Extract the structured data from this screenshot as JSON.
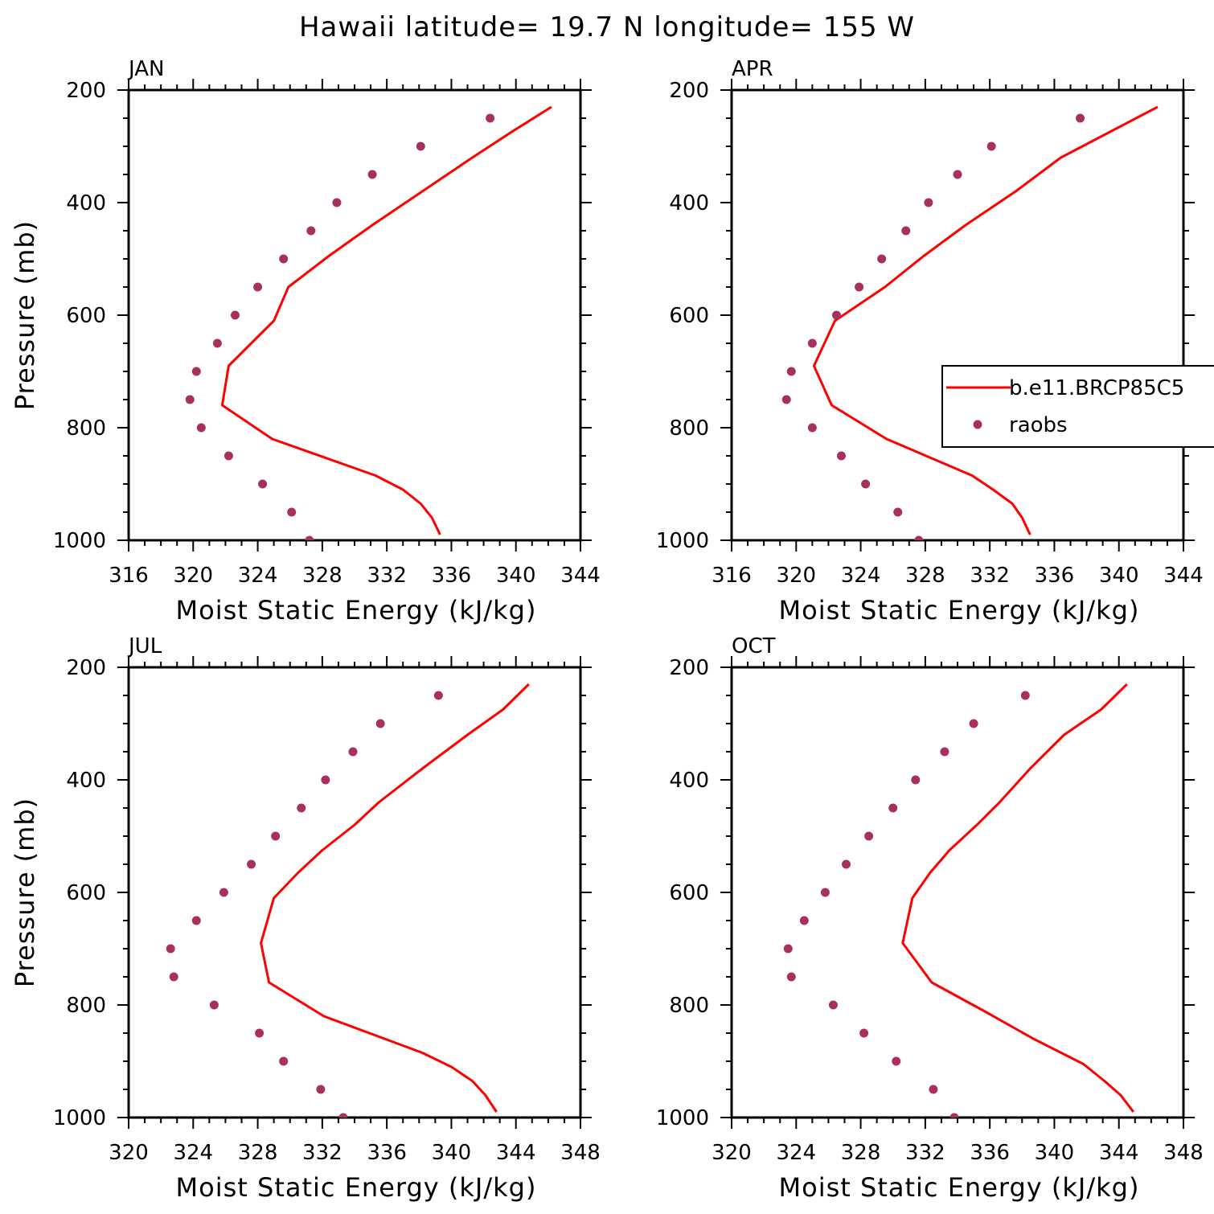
{
  "title": "Hawaii  latitude= 19.7 N longitude= 155 W",
  "colors": {
    "model": "#ff0000",
    "obs": "#a8305e"
  },
  "legend": {
    "placement": "right",
    "model_label": "b.e11.BRCP85C5",
    "obs_label": "raobs"
  },
  "chart_data": [
    {
      "type": "line",
      "panel": "JAN",
      "xlabel": "Moist Static Energy (kJ/kg)",
      "ylabel": "Pressure (mb)",
      "xlim": [
        316,
        344
      ],
      "ylim": [
        200,
        1000
      ],
      "xticks": [
        316,
        320,
        324,
        328,
        332,
        336,
        340,
        344
      ],
      "yticks": [
        200,
        400,
        600,
        800,
        1000
      ],
      "legend": false,
      "series": [
        {
          "name": "b.e11.BRCP85C5",
          "kind": "line",
          "points": [
            [
              342.2,
              230
            ],
            [
              339.7,
              275
            ],
            [
              337.3,
              320
            ],
            [
              334.2,
              380
            ],
            [
              331.1,
              440
            ],
            [
              328.4,
              495
            ],
            [
              325.9,
              550
            ],
            [
              325.0,
              610
            ],
            [
              322.2,
              690
            ],
            [
              321.8,
              760
            ],
            [
              324.9,
              820
            ],
            [
              331.3,
              885
            ],
            [
              333.0,
              910
            ],
            [
              334.1,
              935
            ],
            [
              334.8,
              960
            ],
            [
              335.3,
              990
            ]
          ]
        },
        {
          "name": "raobs",
          "kind": "scatter",
          "points": [
            [
              338.4,
              250
            ],
            [
              334.1,
              300
            ],
            [
              331.1,
              350
            ],
            [
              328.9,
              400
            ],
            [
              327.3,
              450
            ],
            [
              325.6,
              500
            ],
            [
              324.0,
              550
            ],
            [
              322.6,
              600
            ],
            [
              321.5,
              650
            ],
            [
              320.2,
              700
            ],
            [
              319.8,
              750
            ],
            [
              320.5,
              800
            ],
            [
              322.2,
              850
            ],
            [
              324.3,
              900
            ],
            [
              326.1,
              950
            ],
            [
              327.2,
              1000
            ]
          ]
        }
      ]
    },
    {
      "type": "line",
      "panel": "APR",
      "xlabel": "Moist Static Energy (kJ/kg)",
      "ylabel": "",
      "xlim": [
        316,
        344
      ],
      "ylim": [
        200,
        1000
      ],
      "xticks": [
        316,
        320,
        324,
        328,
        332,
        336,
        340,
        344
      ],
      "yticks": [
        200,
        400,
        600,
        800,
        1000
      ],
      "legend": true,
      "series": [
        {
          "name": "b.e11.BRCP85C5",
          "kind": "line",
          "points": [
            [
              342.4,
              230
            ],
            [
              339.4,
              275
            ],
            [
              336.4,
              320
            ],
            [
              333.6,
              380
            ],
            [
              330.5,
              440
            ],
            [
              327.9,
              495
            ],
            [
              325.5,
              550
            ],
            [
              322.4,
              610
            ],
            [
              321.1,
              690
            ],
            [
              322.2,
              760
            ],
            [
              325.6,
              820
            ],
            [
              330.9,
              885
            ],
            [
              332.2,
              910
            ],
            [
              333.4,
              935
            ],
            [
              334.0,
              960
            ],
            [
              334.5,
              990
            ]
          ]
        },
        {
          "name": "raobs",
          "kind": "scatter",
          "points": [
            [
              337.6,
              250
            ],
            [
              332.1,
              300
            ],
            [
              330.0,
              350
            ],
            [
              328.2,
              400
            ],
            [
              326.8,
              450
            ],
            [
              325.3,
              500
            ],
            [
              323.9,
              550
            ],
            [
              322.5,
              600
            ],
            [
              321.0,
              650
            ],
            [
              319.7,
              700
            ],
            [
              319.4,
              750
            ],
            [
              321.0,
              800
            ],
            [
              322.8,
              850
            ],
            [
              324.3,
              900
            ],
            [
              326.3,
              950
            ],
            [
              327.6,
              1000
            ]
          ]
        }
      ]
    },
    {
      "type": "line",
      "panel": "JUL",
      "xlabel": "Moist Static Energy (kJ/kg)",
      "ylabel": "Pressure (mb)",
      "xlim": [
        320,
        348
      ],
      "ylim": [
        200,
        1000
      ],
      "xticks": [
        320,
        324,
        328,
        332,
        336,
        340,
        344,
        348
      ],
      "yticks": [
        200,
        400,
        600,
        800,
        1000
      ],
      "legend": false,
      "series": [
        {
          "name": "b.e11.BRCP85C5",
          "kind": "line",
          "points": [
            [
              344.8,
              230
            ],
            [
              343.2,
              275
            ],
            [
              341.0,
              320
            ],
            [
              338.2,
              380
            ],
            [
              335.5,
              440
            ],
            [
              334.0,
              480
            ],
            [
              332.0,
              525
            ],
            [
              330.5,
              565
            ],
            [
              329.0,
              610
            ],
            [
              328.2,
              690
            ],
            [
              328.7,
              760
            ],
            [
              332.1,
              820
            ],
            [
              338.2,
              885
            ],
            [
              340.0,
              910
            ],
            [
              341.3,
              935
            ],
            [
              342.1,
              960
            ],
            [
              342.8,
              990
            ]
          ]
        },
        {
          "name": "raobs",
          "kind": "scatter",
          "points": [
            [
              339.2,
              250
            ],
            [
              335.6,
              300
            ],
            [
              333.9,
              350
            ],
            [
              332.2,
              400
            ],
            [
              330.7,
              450
            ],
            [
              329.1,
              500
            ],
            [
              327.6,
              550
            ],
            [
              325.9,
              600
            ],
            [
              324.2,
              650
            ],
            [
              322.6,
              700
            ],
            [
              322.8,
              750
            ],
            [
              325.3,
              800
            ],
            [
              328.1,
              850
            ],
            [
              329.6,
              900
            ],
            [
              331.9,
              950
            ],
            [
              333.3,
              1000
            ]
          ]
        }
      ]
    },
    {
      "type": "line",
      "panel": "OCT",
      "xlabel": "Moist Static Energy (kJ/kg)",
      "ylabel": "",
      "xlim": [
        320,
        348
      ],
      "ylim": [
        200,
        1000
      ],
      "xticks": [
        320,
        324,
        328,
        332,
        336,
        340,
        344,
        348
      ],
      "yticks": [
        200,
        400,
        600,
        800,
        1000
      ],
      "legend": false,
      "series": [
        {
          "name": "b.e11.BRCP85C5",
          "kind": "line",
          "points": [
            [
              344.5,
              230
            ],
            [
              342.9,
              275
            ],
            [
              340.6,
              320
            ],
            [
              338.5,
              380
            ],
            [
              336.6,
              440
            ],
            [
              335.2,
              480
            ],
            [
              333.5,
              525
            ],
            [
              332.3,
              565
            ],
            [
              331.2,
              610
            ],
            [
              330.6,
              690
            ],
            [
              332.4,
              760
            ],
            [
              335.6,
              810
            ],
            [
              338.7,
              860
            ],
            [
              341.8,
              905
            ],
            [
              343.1,
              935
            ],
            [
              344.1,
              960
            ],
            [
              344.9,
              990
            ]
          ]
        },
        {
          "name": "raobs",
          "kind": "scatter",
          "points": [
            [
              338.2,
              250
            ],
            [
              335.0,
              300
            ],
            [
              333.2,
              350
            ],
            [
              331.4,
              400
            ],
            [
              330.0,
              450
            ],
            [
              328.5,
              500
            ],
            [
              327.1,
              550
            ],
            [
              325.8,
              600
            ],
            [
              324.5,
              650
            ],
            [
              323.5,
              700
            ],
            [
              323.7,
              750
            ],
            [
              326.3,
              800
            ],
            [
              328.2,
              850
            ],
            [
              330.2,
              900
            ],
            [
              332.5,
              950
            ],
            [
              333.8,
              1000
            ]
          ]
        }
      ]
    }
  ]
}
